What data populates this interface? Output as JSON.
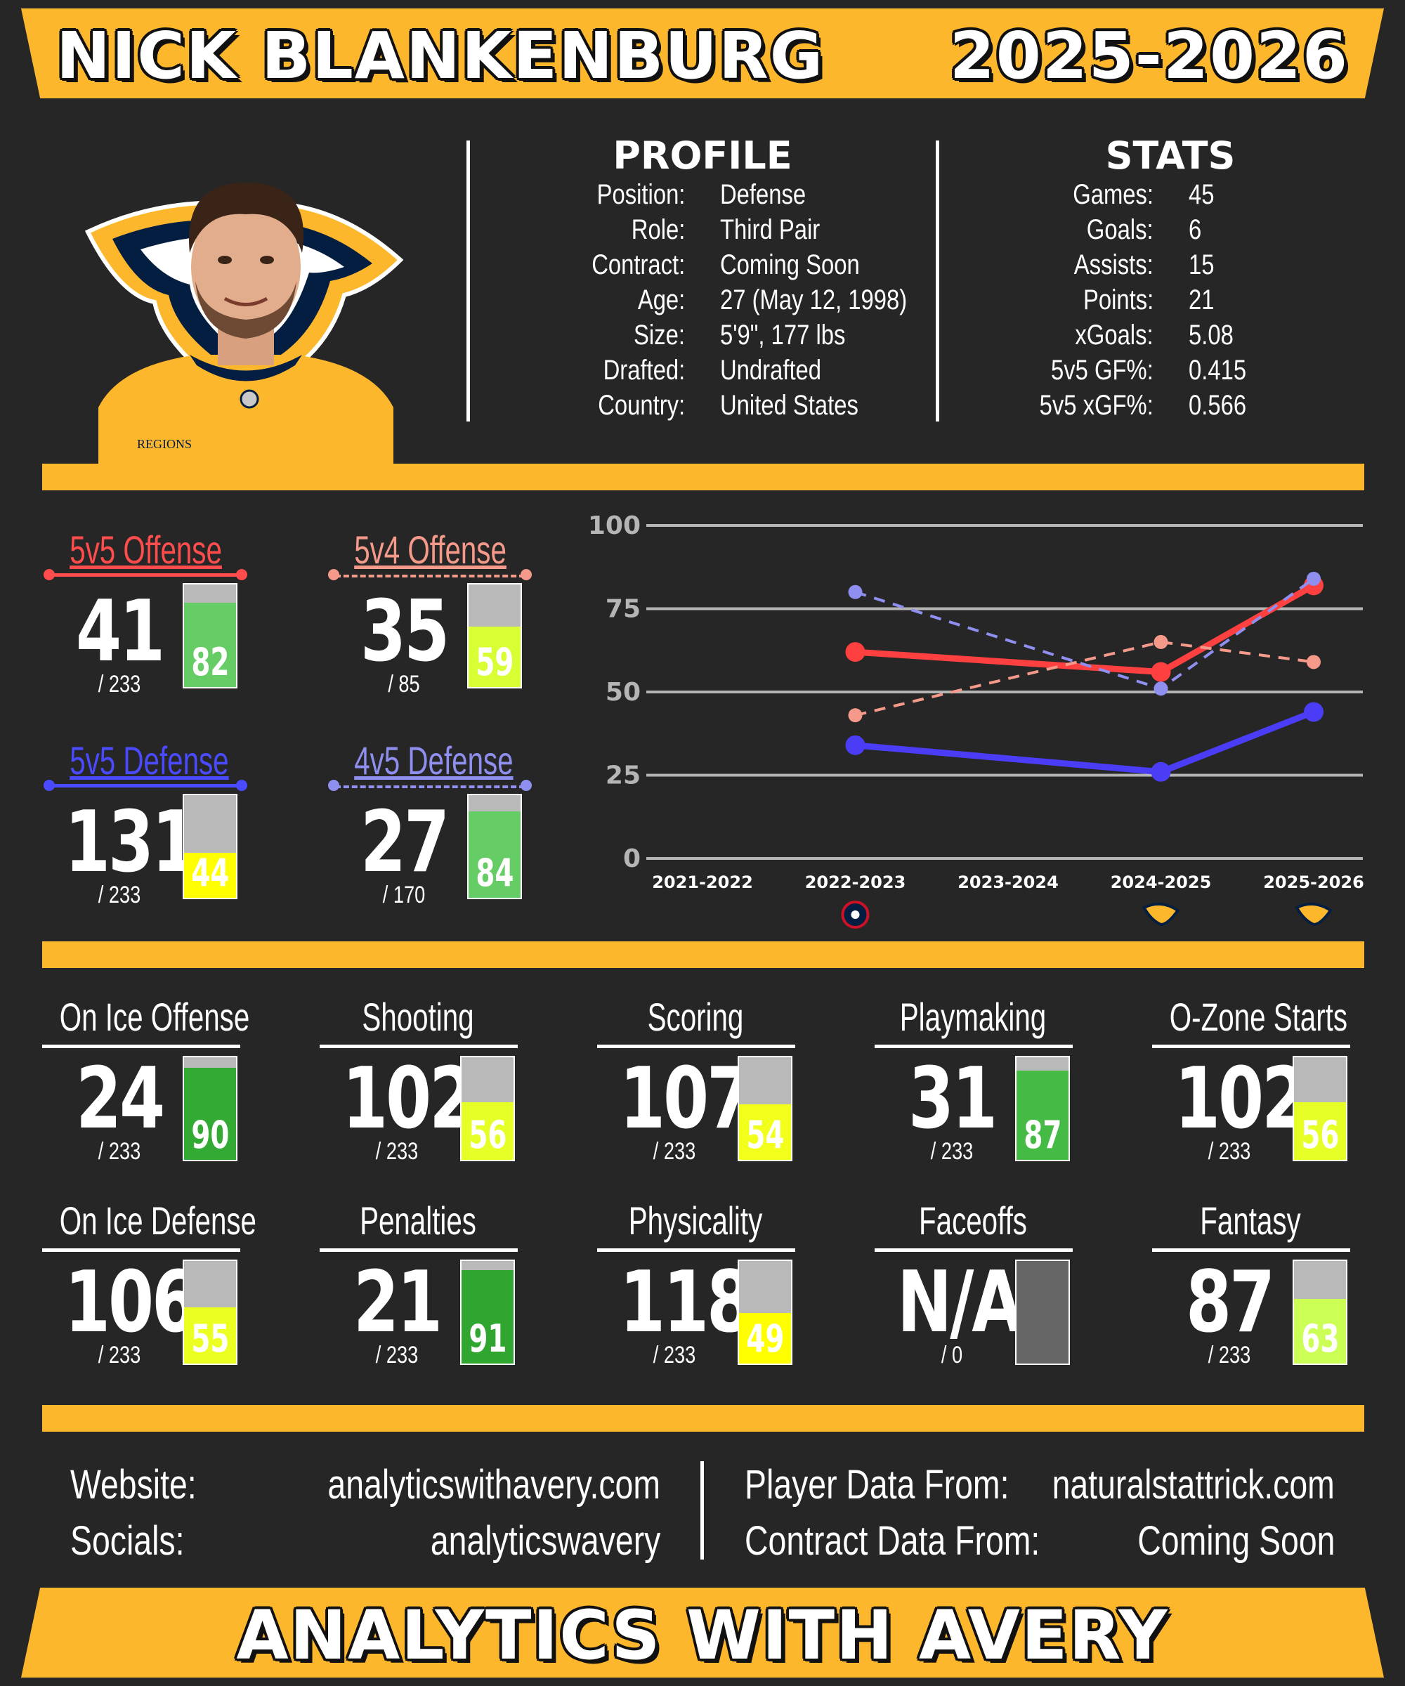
{
  "header": {
    "player_name": "NICK BLANKENBURG",
    "season": "2025-2026"
  },
  "profile": {
    "title": "PROFILE",
    "rows": [
      {
        "label": "Position:",
        "value": "Defense"
      },
      {
        "label": "Role:",
        "value": "Third Pair"
      },
      {
        "label": "Contract:",
        "value": "Coming Soon"
      },
      {
        "label": "Age:",
        "value": "27 (May 12, 1998)"
      },
      {
        "label": "Size:",
        "value": "5'9\", 177 lbs"
      },
      {
        "label": "Drafted:",
        "value": "Undrafted"
      },
      {
        "label": "Country:",
        "value": "United States"
      }
    ]
  },
  "stats": {
    "title": "STATS",
    "rows": [
      {
        "label": "Games:",
        "value": "45"
      },
      {
        "label": "Goals:",
        "value": "6"
      },
      {
        "label": "Assists:",
        "value": "15"
      },
      {
        "label": "Points:",
        "value": "21"
      },
      {
        "label": "xGoals:",
        "value": "5.08"
      },
      {
        "label": "5v5 GF%:",
        "value": "0.415"
      },
      {
        "label": "5v5 xGF%:",
        "value": "0.566"
      }
    ]
  },
  "photo": {
    "jersey_sponsor": "REGIONS",
    "colors": {
      "gold": "#fdb72c",
      "navy": "#041e42"
    }
  },
  "situational": [
    {
      "title": "5v5 Offense",
      "rank": "41",
      "of": "/ 233",
      "pct": 82,
      "color": "#ff4d4d",
      "dashed": false
    },
    {
      "title": "5v4 Offense",
      "rank": "35",
      "of": "/ 85",
      "pct": 59,
      "color": "#f59a8a",
      "dashed": true
    },
    {
      "title": "5v5 Defense",
      "rank": "131",
      "of": "/ 233",
      "pct": 44,
      "color": "#4a4aff",
      "dashed": false
    },
    {
      "title": "4v5 Defense",
      "rank": "27",
      "of": "/ 170",
      "pct": 84,
      "color": "#8f8ff0",
      "dashed": true
    }
  ],
  "chart_data": {
    "type": "line",
    "categories": [
      "2021-2022",
      "2022-2023",
      "2023-2024",
      "2024-2025",
      "2025-2026"
    ],
    "team_icons": [
      "",
      "columbus-blue-jackets-icon",
      "",
      "nashville-predators-icon",
      "nashville-predators-icon"
    ],
    "ylim": [
      0,
      100
    ],
    "yticks": [
      0,
      25,
      50,
      75,
      100
    ],
    "grid": true,
    "series": [
      {
        "name": "5v5 Offense",
        "values": [
          null,
          62,
          null,
          56,
          82
        ],
        "color": "#ff4040",
        "dashed": false
      },
      {
        "name": "5v4 Offense",
        "values": [
          null,
          43,
          null,
          65,
          59
        ],
        "color": "#f59a8a",
        "dashed": true
      },
      {
        "name": "5v5 Defense",
        "values": [
          null,
          34,
          null,
          26,
          44
        ],
        "color": "#4a3df5",
        "dashed": false
      },
      {
        "name": "4v5 Defense",
        "values": [
          null,
          80,
          null,
          51,
          84
        ],
        "color": "#8f8ff0",
        "dashed": true
      }
    ]
  },
  "metrics": [
    {
      "title": "On Ice Offense",
      "rank": "24",
      "of": "/ 233",
      "pct": 90,
      "fill": "#33aa33"
    },
    {
      "title": "Shooting",
      "rank": "102",
      "of": "/ 233",
      "pct": 56,
      "fill": "#e6ff26"
    },
    {
      "title": "Scoring",
      "rank": "107",
      "of": "/ 233",
      "pct": 54,
      "fill": "#f2ff1a"
    },
    {
      "title": "Playmaking",
      "rank": "31",
      "of": "/ 233",
      "pct": 87,
      "fill": "#45bb45"
    },
    {
      "title": "O-Zone Starts",
      "rank": "102",
      "of": "/ 233",
      "pct": 56,
      "fill": "#e6ff26"
    },
    {
      "title": "On Ice Defense",
      "rank": "106",
      "of": "/ 233",
      "pct": 55,
      "fill": "#ecff22"
    },
    {
      "title": "Penalties",
      "rank": "21",
      "of": "/ 233",
      "pct": 91,
      "fill": "#30a530"
    },
    {
      "title": "Physicality",
      "rank": "118",
      "of": "/ 233",
      "pct": 49,
      "fill": "#ffff00"
    },
    {
      "title": "Faceoffs",
      "rank": "N/A",
      "of": "/ 0",
      "pct": null,
      "fill": "#666666"
    },
    {
      "title": "Fantasy",
      "rank": "87",
      "of": "/ 233",
      "pct": 63,
      "fill": "#ccff55"
    }
  ],
  "footer": {
    "website_label": "Website:",
    "website_value": "analyticswithavery.com",
    "socials_label": "Socials:",
    "socials_value": "analyticswavery",
    "player_data_label": "Player Data From:",
    "player_data_value": "naturalstattrick.com",
    "contract_data_label": "Contract Data From:",
    "contract_data_value": "Coming Soon",
    "brand": "ANALYTICS WITH AVERY"
  },
  "colors": {
    "accent": "#fdb72c",
    "background": "#262626"
  }
}
